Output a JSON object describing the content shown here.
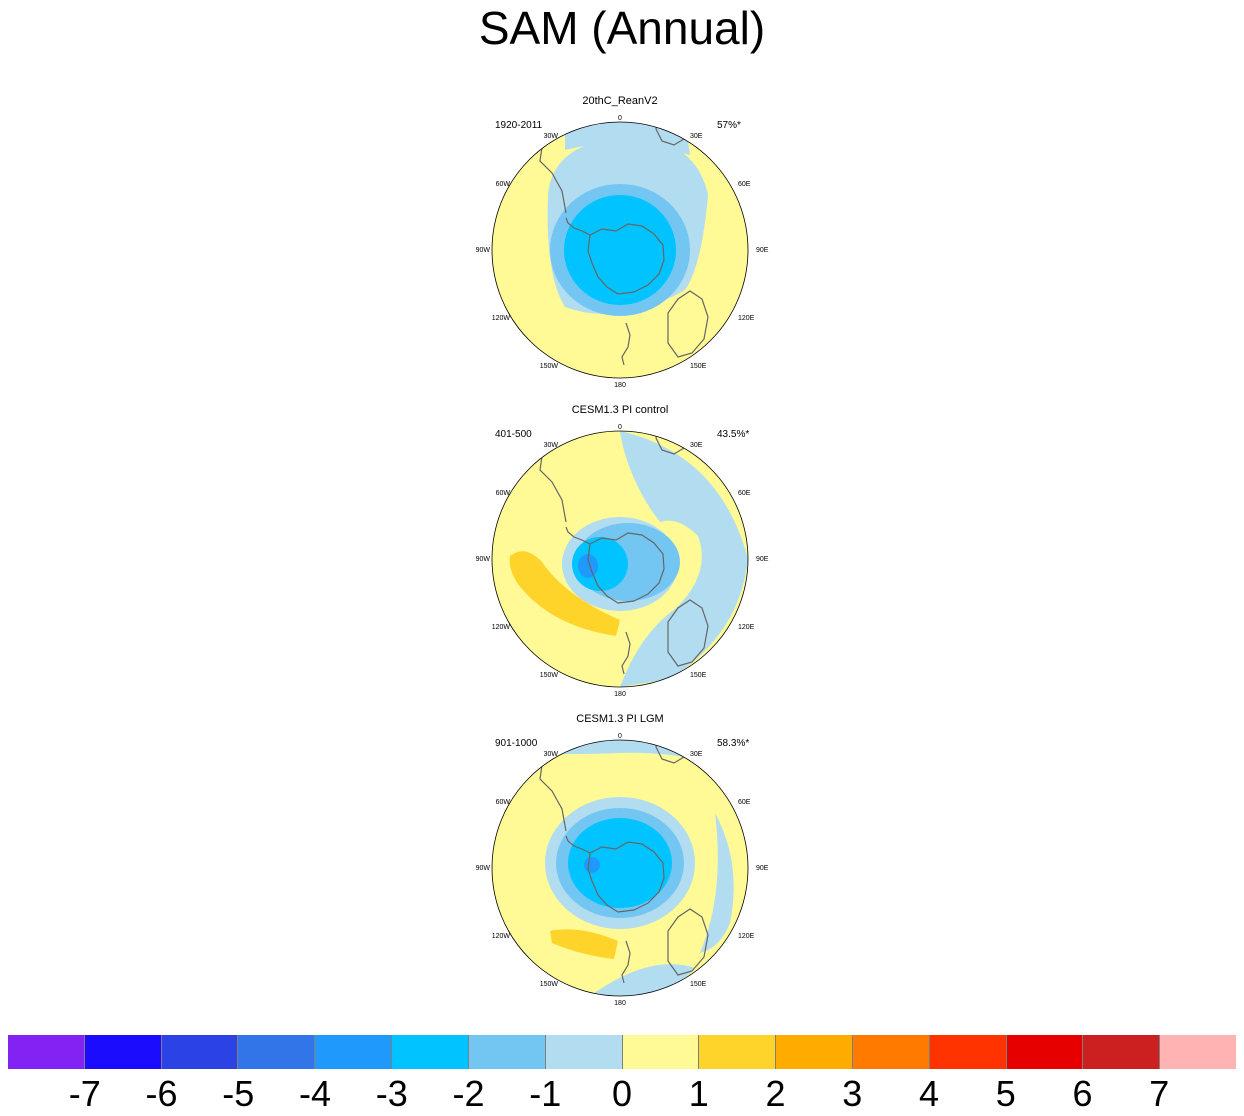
{
  "title": "SAM (Annual)",
  "map_labels": {
    "top": "0",
    "bottom": "180",
    "left": "90W",
    "right": "90E",
    "l1": "30W",
    "l2": "60W",
    "l4": "120W",
    "l5": "150W",
    "r1": "30E",
    "r2": "60E",
    "r4": "120E",
    "r5": "150E"
  },
  "panels": [
    {
      "title": "20thC_ReanV2",
      "period": "1920-2011",
      "percent": "57%*"
    },
    {
      "title": "CESM1.3 PI control",
      "period": "401-500",
      "percent": "43.5%*"
    },
    {
      "title": "CESM1.3 PI LGM",
      "period": "901-1000",
      "percent": "58.3%*"
    }
  ],
  "colorbar": {
    "colors": [
      "#8222f3",
      "#1c0cfd",
      "#2b43e5",
      "#3275e8",
      "#1f9afc",
      "#00c3ff",
      "#74c6f2",
      "#b2dcf0",
      "#fff996",
      "#ffd42a",
      "#ffab00",
      "#ff7b00",
      "#ff3300",
      "#e60000",
      "#cc1f1f",
      "#ffb3b3"
    ],
    "tick_labels": [
      "-7",
      "-6",
      "-5",
      "-4",
      "-3",
      "-2",
      "-1",
      "0",
      "1",
      "2",
      "3",
      "4",
      "5",
      "6",
      "7"
    ]
  }
}
